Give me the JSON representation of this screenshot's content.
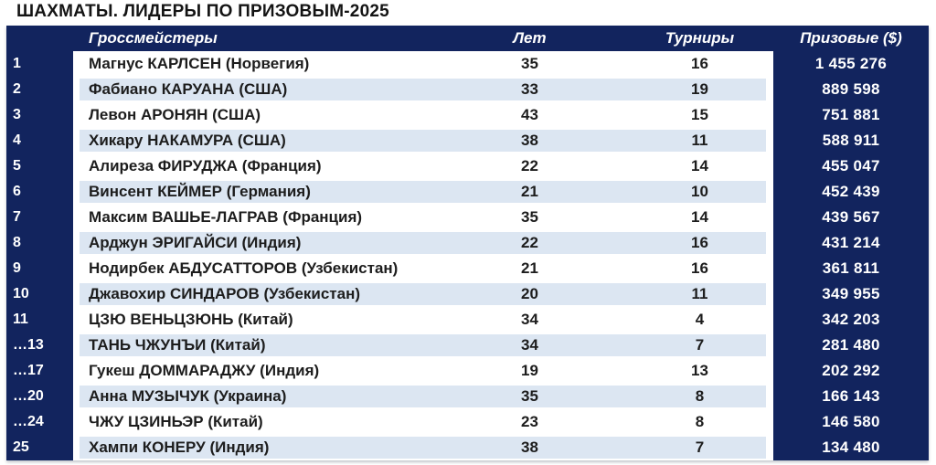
{
  "title": "ШАХМАТЫ. ЛИДЕРЫ ПО ПРИЗОВЫМ-2025",
  "colors": {
    "navy": "#12245e",
    "stripe": "#dce6f2",
    "text": "#1d1d1d",
    "header_text": "#ffffff"
  },
  "chart_data": {
    "type": "table",
    "title": "ШАХМАТЫ. ЛИДЕРЫ ПО ПРИЗОВЫМ-2025",
    "columns": {
      "rank": "",
      "name": "Гроссмейстеры",
      "age": "Лет",
      "tournaments": "Турниры",
      "prize": "Призовые ($)"
    },
    "rows": [
      {
        "rank": "1",
        "name": "Магнус КАРЛСЕН (Норвегия)",
        "age": "35",
        "tournaments": "16",
        "prize": "1 455 276"
      },
      {
        "rank": "2",
        "name": "Фабиано КАРУАНА (США)",
        "age": "33",
        "tournaments": "19",
        "prize": "889 598"
      },
      {
        "rank": "3",
        "name": "Левон АРОНЯН (США)",
        "age": "43",
        "tournaments": "15",
        "prize": "751 881"
      },
      {
        "rank": "4",
        "name": "Хикару НАКАМУРА (США)",
        "age": "38",
        "tournaments": "11",
        "prize": "588 911"
      },
      {
        "rank": "5",
        "name": "Алиреза ФИРУДЖА (Франция)",
        "age": "22",
        "tournaments": "14",
        "prize": "455 047"
      },
      {
        "rank": "6",
        "name": "Винсент КЕЙМЕР (Германия)",
        "age": "21",
        "tournaments": "10",
        "prize": "452 439"
      },
      {
        "rank": "7",
        "name": "Максим ВАШЬЕ-ЛАГРАВ (Франция)",
        "age": "35",
        "tournaments": "14",
        "prize": "439 567"
      },
      {
        "rank": "8",
        "name": "Арджун ЭРИГАЙСИ (Индия)",
        "age": "22",
        "tournaments": "16",
        "prize": "431 214"
      },
      {
        "rank": "9",
        "name": "Нодирбек АБДУСАТТОРОВ (Узбекистан)",
        "age": "21",
        "tournaments": "16",
        "prize": "361 811"
      },
      {
        "rank": "10",
        "name": "Джавохир СИНДАРОВ (Узбекистан)",
        "age": "20",
        "tournaments": "11",
        "prize": "349 955"
      },
      {
        "rank": "11",
        "name": "ЦЗЮ ВЕНЬЦЗЮНЬ (Китай)",
        "age": "34",
        "tournaments": "4",
        "prize": "342 203"
      },
      {
        "rank": "…13",
        "name": "ТАНЬ ЧЖУНЪИ (Китай)",
        "age": "34",
        "tournaments": "7",
        "prize": "281 480"
      },
      {
        "rank": "…17",
        "name": "Гукеш ДОММАРАДЖУ (Индия)",
        "age": "19",
        "tournaments": "13",
        "prize": "202 292"
      },
      {
        "rank": "…20",
        "name": "Анна МУЗЫЧУК (Украина)",
        "age": "35",
        "tournaments": "8",
        "prize": "166 143"
      },
      {
        "rank": "…24",
        "name": "ЧЖУ ЦЗИНЬЭР (Китай)",
        "age": "23",
        "tournaments": "8",
        "prize": "146 580"
      },
      {
        "rank": "25",
        "name": "Хампи КОНЕРУ (Индия)",
        "age": "38",
        "tournaments": "7",
        "prize": "134 480"
      }
    ]
  }
}
